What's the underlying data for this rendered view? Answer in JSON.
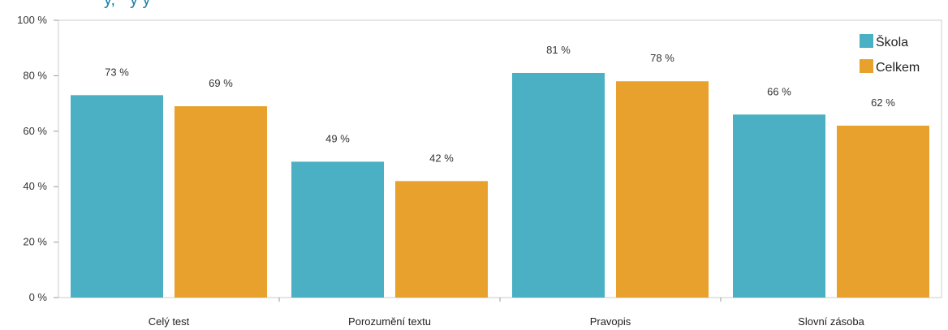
{
  "chart_data": {
    "type": "bar",
    "categories": [
      "Celý test",
      "Porozumění textu",
      "Pravopis",
      "Slovní zásoba"
    ],
    "series": [
      {
        "name": "Škola",
        "values": [
          73,
          49,
          81,
          66
        ],
        "labels": [
          "73 %",
          "49 %",
          "81 %",
          "66 %"
        ],
        "color": "#4bb0c4"
      },
      {
        "name": "Celkem",
        "values": [
          69,
          42,
          78,
          62
        ],
        "labels": [
          "69 %",
          "42 %",
          "78 %",
          "62 %"
        ],
        "color": "#e8a12c"
      }
    ],
    "ylim": [
      0,
      100
    ],
    "yticks": [
      0,
      20,
      40,
      60,
      80,
      100
    ],
    "ytick_labels": [
      "0 %",
      "20 %",
      "40 %",
      "60 %",
      "80 %",
      "100 %"
    ],
    "grid": false,
    "legend": "top-right"
  }
}
